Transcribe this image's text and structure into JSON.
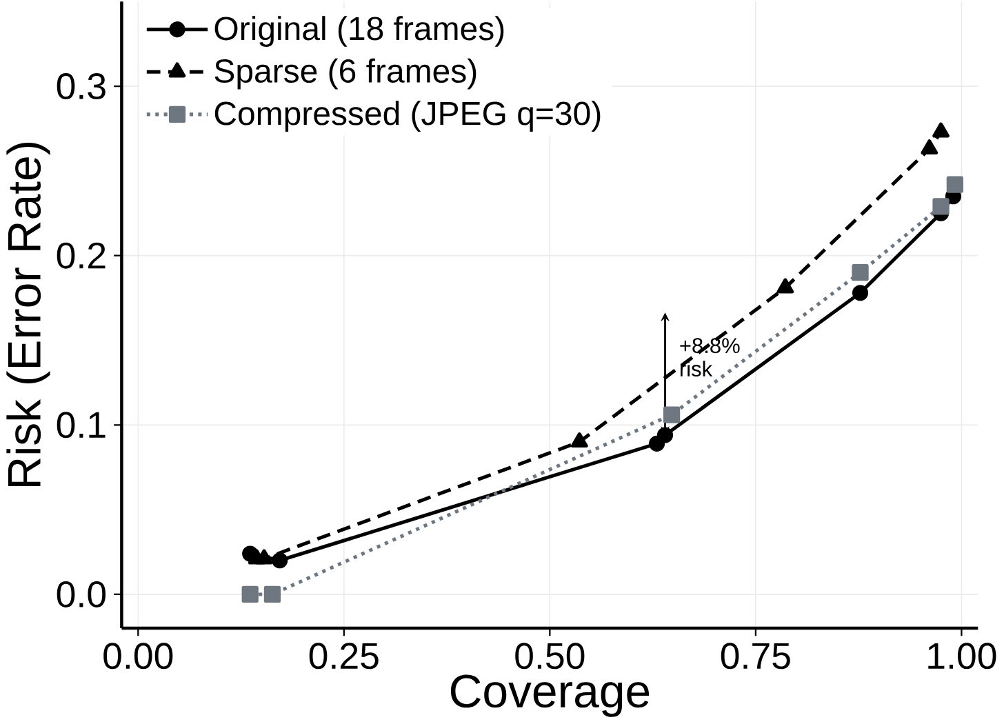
{
  "chart_data": {
    "type": "line",
    "xlabel": "Coverage",
    "ylabel": "Risk (Error Rate)",
    "xlim": [
      -0.02,
      1.02
    ],
    "ylim": [
      -0.02,
      0.35
    ],
    "xticks": [
      {
        "value": 0,
        "label": "0.00"
      },
      0.25,
      {
        "value": 0.5,
        "label": "0.50"
      },
      0.75,
      {
        "value": 1,
        "label": "1.00"
      }
    ],
    "yticks": [
      {
        "value": 0,
        "label": "0.0"
      },
      0.1,
      0.2,
      0.3
    ],
    "grid": true,
    "legend": "top left",
    "series": [
      {
        "name": "Original (18 frames)",
        "color": "#000000",
        "marker": "circle",
        "line_style": "solid",
        "x": [
          0.136,
          0.172,
          0.63,
          0.64,
          0.877,
          0.975,
          0.99
        ],
        "values": [
          0.024,
          0.02,
          0.089,
          0.094,
          0.178,
          0.225,
          0.235
        ]
      },
      {
        "name": "Sparse (6 frames)",
        "color": "#000000",
        "marker": "triangle",
        "line_style": "dashed",
        "x": [
          0.144,
          0.153,
          0.536,
          0.786,
          0.961,
          0.975
        ],
        "values": [
          0.021,
          0.021,
          0.09,
          0.181,
          0.263,
          0.273
        ]
      },
      {
        "name": "Compressed (JPEG q=30)",
        "color": "#6e7780",
        "marker": "square",
        "line_style": "dotted",
        "x": [
          0.136,
          0.163,
          0.648,
          0.877,
          0.975,
          0.992
        ],
        "values": [
          0.0,
          0.0,
          0.106,
          0.19,
          0.229,
          0.242
        ]
      }
    ],
    "annotations": [
      {
        "text": "+8.8% risk",
        "x": 0.64,
        "y": 0.094
      }
    ]
  }
}
